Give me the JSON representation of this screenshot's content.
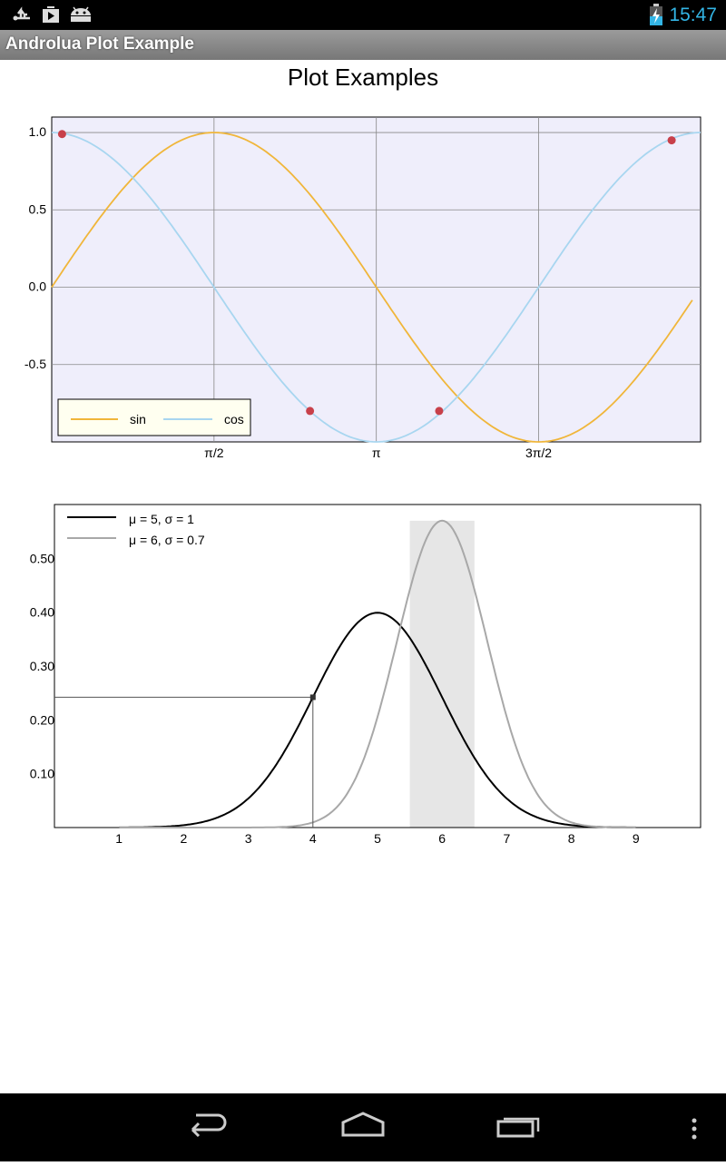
{
  "status": {
    "time": "15:47"
  },
  "app": {
    "title": "Androlua Plot Example"
  },
  "page": {
    "title": "Plot Examples"
  },
  "icons": [
    "usb-icon",
    "play-store-icon",
    "android-icon",
    "battery-charging-icon",
    "back-icon",
    "home-icon",
    "recent-apps-icon",
    "overflow-menu-icon"
  ],
  "chart_data": [
    {
      "type": "line",
      "title": "",
      "xlim": [
        0,
        6.28
      ],
      "ylim": [
        -1.0,
        1.1
      ],
      "x_ticks": [
        1.5708,
        3.1416,
        4.7124
      ],
      "x_tick_labels": [
        "π/2",
        "π",
        "3π/2"
      ],
      "y_ticks": [
        1.0,
        0.5,
        0.0,
        -0.5
      ],
      "y_tick_labels": [
        "1.0",
        "0.5",
        "0.0",
        "-0.5"
      ],
      "grid": true,
      "background": "#efeefb",
      "series": [
        {
          "name": "sin",
          "function": "sin",
          "x_range": [
            0,
            6.2
          ],
          "color": "#f0b63a"
        },
        {
          "name": "cos",
          "function": "cos",
          "x_range": [
            0,
            6.28
          ],
          "color": "#a8d6f0"
        }
      ],
      "points": [
        [
          0.1,
          0.99
        ],
        [
          2.5,
          -0.8
        ],
        [
          3.75,
          -0.8
        ],
        [
          6.0,
          0.95
        ]
      ],
      "point_color": "#c8404a",
      "legend": {
        "position": "bottom-left",
        "background": "#fffff0"
      }
    },
    {
      "type": "line",
      "title": "",
      "xlim": [
        0,
        10
      ],
      "ylim": [
        0,
        0.6
      ],
      "x_ticks": [
        1,
        2,
        3,
        4,
        5,
        6,
        7,
        8,
        9
      ],
      "x_tick_labels": [
        "1",
        "2",
        "3",
        "4",
        "5",
        "6",
        "7",
        "8",
        "9"
      ],
      "y_ticks": [
        0.1,
        0.2,
        0.3,
        0.4,
        0.5
      ],
      "y_tick_labels": [
        "0.10",
        "0.20",
        "0.30",
        "0.40",
        "0.50"
      ],
      "grid": false,
      "series": [
        {
          "name": "μ = 5, σ = 1",
          "mu": 5,
          "sigma": 1,
          "x_range": [
            1,
            9
          ],
          "color": "#000000"
        },
        {
          "name": "μ = 6, σ = 0.7",
          "mu": 6,
          "sigma": 0.7,
          "x_range": [
            1,
            9
          ],
          "color": "#a8a8a8"
        }
      ],
      "shaded_region": {
        "x": [
          5.5,
          6.5
        ],
        "color": "#e6e6e6"
      },
      "marker": {
        "x": 4,
        "y": 0.242
      },
      "legend": {
        "position": "top-left"
      }
    }
  ]
}
